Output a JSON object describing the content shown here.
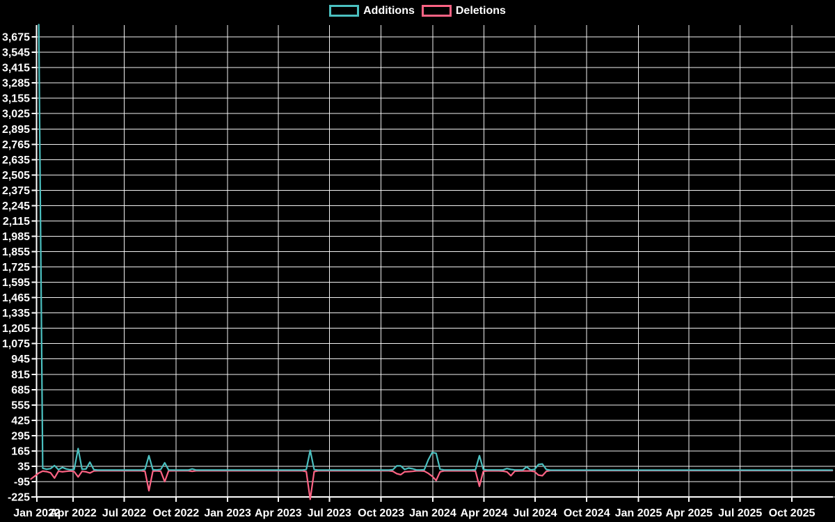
{
  "page": {
    "background": "#000000"
  },
  "chart_data": {
    "type": "line",
    "title": "",
    "legend_position": "top",
    "grid": true,
    "background": "#000000",
    "text_color": "#ffffff",
    "grid_color": "#ffffff",
    "x_axis": {
      "type": "time",
      "ticks": [
        {
          "label": "Jan 2022",
          "date": "2022-01-01"
        },
        {
          "label": "Apr 2022",
          "date": "2022-04-01"
        },
        {
          "label": "Jul 2022",
          "date": "2022-07-01"
        },
        {
          "label": "Oct 2022",
          "date": "2022-10-01"
        },
        {
          "label": "Jan 2023",
          "date": "2023-01-01"
        },
        {
          "label": "Apr 2023",
          "date": "2023-04-01"
        },
        {
          "label": "Jul 2023",
          "date": "2023-07-01"
        },
        {
          "label": "Oct 2023",
          "date": "2023-10-01"
        },
        {
          "label": "Jan 2024",
          "date": "2024-01-01"
        },
        {
          "label": "Apr 2024",
          "date": "2024-04-01"
        },
        {
          "label": "Jul 2024",
          "date": "2024-07-01"
        },
        {
          "label": "Oct 2024",
          "date": "2024-10-01"
        },
        {
          "label": "Jan 2025",
          "date": "2025-01-01"
        },
        {
          "label": "Apr 2025",
          "date": "2025-04-01"
        },
        {
          "label": "Jul 2025",
          "date": "2025-07-01"
        },
        {
          "label": "Oct 2025",
          "date": "2025-10-01"
        }
      ]
    },
    "y_axis": {
      "tick_min": -225,
      "tick_max": 3675,
      "tick_step": 130,
      "axis_max_visible": 3776,
      "ylim": [
        -245,
        3780
      ]
    },
    "series": [
      {
        "name": "Additions",
        "color": "#4bc0c0",
        "points": [
          [
            "2022-01-30",
            3780
          ],
          [
            "2022-02-06",
            18
          ],
          [
            "2022-02-13",
            10
          ],
          [
            "2022-02-20",
            15
          ],
          [
            "2022-02-27",
            41
          ],
          [
            "2022-03-06",
            6
          ],
          [
            "2022-03-13",
            25
          ],
          [
            "2022-03-20",
            12
          ],
          [
            "2022-03-27",
            6
          ],
          [
            "2022-04-03",
            8
          ],
          [
            "2022-04-10",
            185
          ],
          [
            "2022-04-17",
            10
          ],
          [
            "2022-04-24",
            12
          ],
          [
            "2022-05-01",
            70
          ],
          [
            "2022-05-08",
            6
          ],
          [
            "2022-05-15",
            3
          ],
          [
            "2022-06-12",
            3
          ],
          [
            "2022-07-31",
            3
          ],
          [
            "2022-08-07",
            8
          ],
          [
            "2022-08-14",
            125
          ],
          [
            "2022-08-21",
            6
          ],
          [
            "2022-08-28",
            4
          ],
          [
            "2022-09-04",
            8
          ],
          [
            "2022-09-11",
            65
          ],
          [
            "2022-09-18",
            4
          ],
          [
            "2022-10-02",
            3
          ],
          [
            "2022-10-23",
            3
          ],
          [
            "2022-10-30",
            12
          ],
          [
            "2022-11-06",
            3
          ],
          [
            "2022-12-04",
            3
          ],
          [
            "2023-02-05",
            3
          ],
          [
            "2023-04-02",
            3
          ],
          [
            "2023-05-14",
            3
          ],
          [
            "2023-05-21",
            8
          ],
          [
            "2023-05-28",
            170
          ],
          [
            "2023-06-04",
            8
          ],
          [
            "2023-06-11",
            3
          ],
          [
            "2023-07-16",
            3
          ],
          [
            "2023-09-03",
            3
          ],
          [
            "2023-10-15",
            3
          ],
          [
            "2023-10-22",
            6
          ],
          [
            "2023-10-29",
            38
          ],
          [
            "2023-11-05",
            38
          ],
          [
            "2023-11-12",
            8
          ],
          [
            "2023-11-19",
            20
          ],
          [
            "2023-11-26",
            14
          ],
          [
            "2023-12-03",
            4
          ],
          [
            "2023-12-10",
            4
          ],
          [
            "2023-12-17",
            6
          ],
          [
            "2023-12-24",
            90
          ],
          [
            "2023-12-31",
            152
          ],
          [
            "2024-01-07",
            145
          ],
          [
            "2024-01-14",
            10
          ],
          [
            "2024-01-21",
            4
          ],
          [
            "2024-02-11",
            4
          ],
          [
            "2024-03-10",
            4
          ],
          [
            "2024-03-17",
            6
          ],
          [
            "2024-03-24",
            125
          ],
          [
            "2024-03-31",
            8
          ],
          [
            "2024-04-07",
            4
          ],
          [
            "2024-04-28",
            4
          ],
          [
            "2024-05-05",
            4
          ],
          [
            "2024-05-12",
            16
          ],
          [
            "2024-05-19",
            8
          ],
          [
            "2024-05-26",
            4
          ],
          [
            "2024-06-09",
            4
          ],
          [
            "2024-06-16",
            30
          ],
          [
            "2024-06-23",
            4
          ],
          [
            "2024-06-30",
            8
          ],
          [
            "2024-07-07",
            50
          ],
          [
            "2024-07-14",
            55
          ],
          [
            "2024-07-21",
            8
          ],
          [
            "2024-07-28",
            2
          ],
          [
            "2024-09-01",
            2
          ],
          [
            "2024-11-03",
            2
          ],
          [
            "2025-01-05",
            2
          ],
          [
            "2025-03-02",
            2
          ],
          [
            "2025-05-04",
            2
          ],
          [
            "2025-07-06",
            2
          ],
          [
            "2025-09-07",
            2
          ],
          [
            "2025-11-02",
            2
          ],
          [
            "2025-12-12",
            2
          ]
        ]
      },
      {
        "name": "Deletions",
        "color": "#ff6384",
        "points": [
          [
            "2022-01-16",
            -73
          ],
          [
            "2022-01-23",
            -48
          ],
          [
            "2022-01-30",
            -22
          ],
          [
            "2022-02-06",
            -6
          ],
          [
            "2022-02-13",
            -10
          ],
          [
            "2022-02-20",
            -20
          ],
          [
            "2022-02-27",
            -65
          ],
          [
            "2022-03-06",
            -6
          ],
          [
            "2022-03-13",
            -12
          ],
          [
            "2022-03-20",
            -8
          ],
          [
            "2022-03-27",
            -5
          ],
          [
            "2022-04-03",
            -10
          ],
          [
            "2022-04-10",
            -55
          ],
          [
            "2022-04-17",
            -8
          ],
          [
            "2022-04-24",
            -12
          ],
          [
            "2022-05-01",
            -22
          ],
          [
            "2022-05-08",
            -5
          ],
          [
            "2022-05-15",
            -3
          ],
          [
            "2022-06-12",
            -3
          ],
          [
            "2022-07-31",
            -3
          ],
          [
            "2022-08-07",
            -8
          ],
          [
            "2022-08-14",
            -172
          ],
          [
            "2022-08-21",
            -6
          ],
          [
            "2022-08-28",
            -4
          ],
          [
            "2022-09-04",
            -8
          ],
          [
            "2022-09-11",
            -95
          ],
          [
            "2022-09-18",
            -4
          ],
          [
            "2022-10-02",
            -3
          ],
          [
            "2022-10-23",
            -3
          ],
          [
            "2022-10-30",
            -8
          ],
          [
            "2022-11-06",
            -3
          ],
          [
            "2022-12-04",
            -3
          ],
          [
            "2023-02-05",
            -3
          ],
          [
            "2023-04-02",
            -3
          ],
          [
            "2023-05-14",
            -3
          ],
          [
            "2023-05-21",
            -10
          ],
          [
            "2023-05-28",
            -245
          ],
          [
            "2023-06-04",
            -10
          ],
          [
            "2023-06-11",
            -3
          ],
          [
            "2023-07-16",
            -3
          ],
          [
            "2023-09-03",
            -3
          ],
          [
            "2023-10-15",
            -3
          ],
          [
            "2023-10-22",
            -8
          ],
          [
            "2023-10-29",
            -28
          ],
          [
            "2023-11-05",
            -36
          ],
          [
            "2023-11-12",
            -12
          ],
          [
            "2023-11-19",
            -10
          ],
          [
            "2023-11-26",
            -8
          ],
          [
            "2023-12-03",
            -4
          ],
          [
            "2023-12-10",
            -4
          ],
          [
            "2023-12-17",
            -6
          ],
          [
            "2023-12-24",
            -25
          ],
          [
            "2023-12-31",
            -50
          ],
          [
            "2024-01-07",
            -85
          ],
          [
            "2024-01-14",
            -12
          ],
          [
            "2024-01-21",
            -4
          ],
          [
            "2024-02-11",
            -4
          ],
          [
            "2024-03-10",
            -4
          ],
          [
            "2024-03-17",
            -6
          ],
          [
            "2024-03-24",
            -135
          ],
          [
            "2024-03-31",
            -8
          ],
          [
            "2024-04-07",
            -4
          ],
          [
            "2024-04-28",
            -4
          ],
          [
            "2024-05-05",
            -6
          ],
          [
            "2024-05-12",
            -12
          ],
          [
            "2024-05-19",
            -45
          ],
          [
            "2024-05-26",
            -6
          ],
          [
            "2024-06-09",
            -4
          ],
          [
            "2024-06-16",
            -5
          ],
          [
            "2024-06-23",
            -4
          ],
          [
            "2024-06-30",
            -10
          ],
          [
            "2024-07-07",
            -40
          ],
          [
            "2024-07-14",
            -45
          ],
          [
            "2024-07-21",
            -8
          ],
          [
            "2024-07-28",
            -2
          ],
          [
            "2024-09-01",
            -2
          ],
          [
            "2024-11-03",
            -2
          ],
          [
            "2025-01-05",
            -2
          ],
          [
            "2025-03-02",
            -2
          ],
          [
            "2025-05-04",
            -2
          ],
          [
            "2025-07-06",
            -2
          ],
          [
            "2025-09-07",
            -2
          ],
          [
            "2025-11-02",
            -2
          ],
          [
            "2025-12-12",
            -2
          ]
        ]
      }
    ]
  }
}
